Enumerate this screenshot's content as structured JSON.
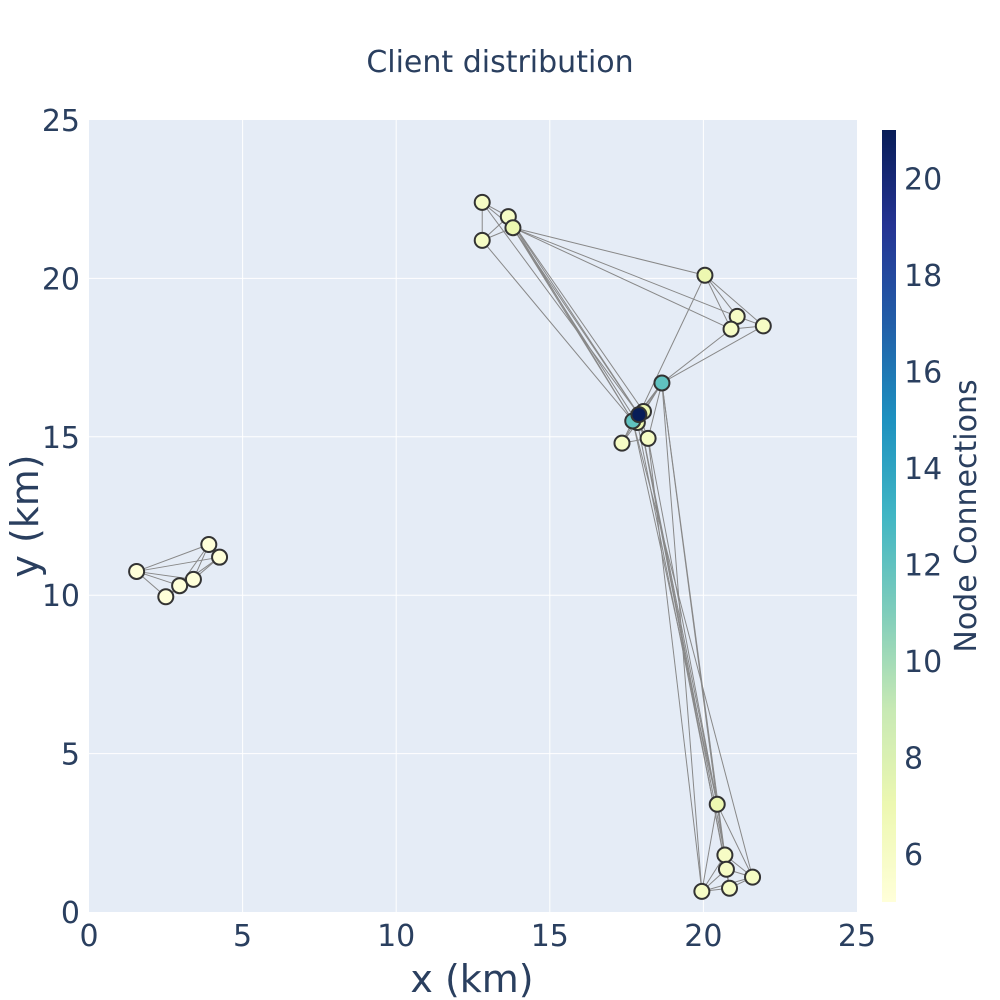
{
  "chart_data": {
    "type": "scatter",
    "title": "Client distribution",
    "xlabel": "x (km)",
    "ylabel": "y (km)",
    "xlim": [
      0,
      25
    ],
    "ylim": [
      0,
      25
    ],
    "x_ticks": [
      0,
      5,
      10,
      15,
      20,
      25
    ],
    "y_ticks": [
      0,
      5,
      10,
      15,
      20,
      25
    ],
    "grid": true,
    "colorbar": {
      "title": "Node Connections",
      "range": [
        5,
        21
      ],
      "ticks": [
        6,
        8,
        10,
        12,
        14,
        16,
        18,
        20
      ],
      "colorscale": "YlGnBu",
      "colors": [
        "#ffffd9",
        "#edf8b1",
        "#c7e9b4",
        "#7fcdbb",
        "#41b6c4",
        "#1d91c0",
        "#225ea8",
        "#253494",
        "#081d58"
      ]
    },
    "nodes": [
      {
        "x": 1.55,
        "y": 10.75,
        "c": 5
      },
      {
        "x": 2.5,
        "y": 9.95,
        "c": 5
      },
      {
        "x": 2.95,
        "y": 10.3,
        "c": 5
      },
      {
        "x": 3.4,
        "y": 10.5,
        "c": 5
      },
      {
        "x": 3.9,
        "y": 11.6,
        "c": 5
      },
      {
        "x": 4.25,
        "y": 11.2,
        "c": 5
      },
      {
        "x": 12.8,
        "y": 22.4,
        "c": 6
      },
      {
        "x": 12.8,
        "y": 21.2,
        "c": 6
      },
      {
        "x": 13.65,
        "y": 21.95,
        "c": 6
      },
      {
        "x": 13.8,
        "y": 21.6,
        "c": 7
      },
      {
        "x": 20.05,
        "y": 20.1,
        "c": 7
      },
      {
        "x": 21.1,
        "y": 18.8,
        "c": 6
      },
      {
        "x": 21.95,
        "y": 18.5,
        "c": 6
      },
      {
        "x": 20.9,
        "y": 18.4,
        "c": 6
      },
      {
        "x": 18.65,
        "y": 16.7,
        "c": 12
      },
      {
        "x": 18.05,
        "y": 15.8,
        "c": 7
      },
      {
        "x": 17.9,
        "y": 15.7,
        "c": 21
      },
      {
        "x": 17.7,
        "y": 15.5,
        "c": 12
      },
      {
        "x": 17.85,
        "y": 15.45,
        "c": 7
      },
      {
        "x": 17.35,
        "y": 14.8,
        "c": 6
      },
      {
        "x": 18.2,
        "y": 14.95,
        "c": 6
      },
      {
        "x": 20.45,
        "y": 3.4,
        "c": 7
      },
      {
        "x": 20.7,
        "y": 1.8,
        "c": 6
      },
      {
        "x": 20.75,
        "y": 1.35,
        "c": 6
      },
      {
        "x": 21.6,
        "y": 1.1,
        "c": 6
      },
      {
        "x": 20.85,
        "y": 0.75,
        "c": 6
      },
      {
        "x": 19.95,
        "y": 0.65,
        "c": 6
      }
    ],
    "edges": [
      [
        0,
        1
      ],
      [
        0,
        2
      ],
      [
        0,
        3
      ],
      [
        0,
        4
      ],
      [
        0,
        5
      ],
      [
        1,
        2
      ],
      [
        1,
        3
      ],
      [
        2,
        3
      ],
      [
        2,
        4
      ],
      [
        2,
        5
      ],
      [
        3,
        4
      ],
      [
        3,
        5
      ],
      [
        4,
        5
      ],
      [
        6,
        7
      ],
      [
        6,
        8
      ],
      [
        6,
        9
      ],
      [
        7,
        8
      ],
      [
        7,
        9
      ],
      [
        8,
        9
      ],
      [
        9,
        16
      ],
      [
        9,
        17
      ],
      [
        9,
        18
      ],
      [
        9,
        10
      ],
      [
        9,
        11
      ],
      [
        9,
        13
      ],
      [
        8,
        16
      ],
      [
        8,
        17
      ],
      [
        8,
        15
      ],
      [
        6,
        16
      ],
      [
        7,
        17
      ],
      [
        10,
        11
      ],
      [
        10,
        12
      ],
      [
        10,
        13
      ],
      [
        10,
        16
      ],
      [
        11,
        12
      ],
      [
        11,
        13
      ],
      [
        12,
        13
      ],
      [
        12,
        14
      ],
      [
        13,
        14
      ],
      [
        14,
        15
      ],
      [
        14,
        16
      ],
      [
        14,
        17
      ],
      [
        14,
        18
      ],
      [
        14,
        20
      ],
      [
        15,
        16
      ],
      [
        15,
        17
      ],
      [
        15,
        18
      ],
      [
        16,
        17
      ],
      [
        16,
        18
      ],
      [
        16,
        19
      ],
      [
        16,
        20
      ],
      [
        17,
        18
      ],
      [
        17,
        19
      ],
      [
        17,
        20
      ],
      [
        18,
        19
      ],
      [
        18,
        20
      ],
      [
        19,
        20
      ],
      [
        14,
        21
      ],
      [
        14,
        22
      ],
      [
        14,
        26
      ],
      [
        16,
        21
      ],
      [
        16,
        22
      ],
      [
        16,
        25
      ],
      [
        17,
        21
      ],
      [
        17,
        24
      ],
      [
        18,
        23
      ],
      [
        20,
        21
      ],
      [
        20,
        26
      ],
      [
        21,
        22
      ],
      [
        21,
        23
      ],
      [
        21,
        24
      ],
      [
        21,
        25
      ],
      [
        21,
        26
      ],
      [
        22,
        23
      ],
      [
        22,
        24
      ],
      [
        22,
        26
      ],
      [
        23,
        24
      ],
      [
        23,
        25
      ],
      [
        23,
        26
      ],
      [
        24,
        25
      ],
      [
        24,
        26
      ],
      [
        25,
        26
      ]
    ]
  }
}
